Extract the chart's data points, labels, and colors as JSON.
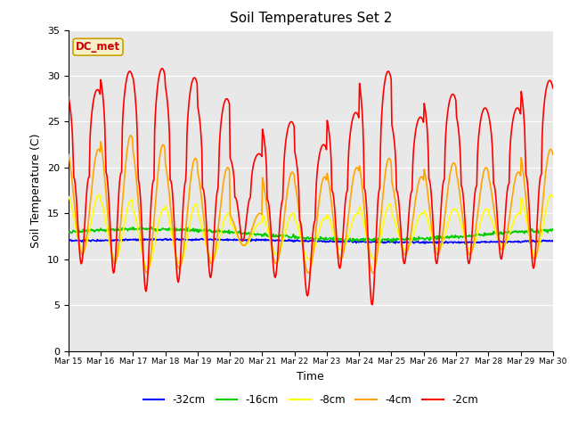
{
  "title": "Soil Temperatures Set 2",
  "xlabel": "Time",
  "ylabel": "Soil Temperature (C)",
  "ylim": [
    0,
    35
  ],
  "background_color": "#e8e8e8",
  "annotation_text": "DC_met",
  "annotation_color": "#cc0000",
  "annotation_bg": "#f5f0c8",
  "annotation_border": "#c8a000",
  "x_tick_labels": [
    "Mar 15",
    "Mar 16",
    "Mar 17",
    "Mar 18",
    "Mar 19",
    "Mar 20",
    "Mar 21",
    "Mar 22",
    "Mar 23",
    "Mar 24",
    "Mar 25",
    "Mar 26",
    "Mar 27",
    "Mar 28",
    "Mar 29",
    "Mar 30"
  ],
  "series_colors": [
    "blue",
    "#00cc00",
    "yellow",
    "orange",
    "red"
  ],
  "series_labels": [
    "-32cm",
    "-16cm",
    "-8cm",
    "-4cm",
    "-2cm"
  ],
  "peaks_s2": [
    28.5,
    30.5,
    30.8,
    29.8,
    27.5,
    21.5,
    25.0,
    22.5,
    26.0,
    30.5,
    25.5,
    28.0,
    26.5,
    26.5,
    29.5
  ],
  "troughs_s2": [
    9.5,
    8.5,
    6.5,
    7.5,
    8.0,
    12.0,
    8.0,
    6.0,
    9.0,
    5.0,
    9.5,
    9.5,
    9.5,
    10.0,
    9.0
  ],
  "peaks_s4": [
    22.0,
    23.5,
    22.5,
    21.0,
    20.0,
    15.0,
    19.5,
    19.0,
    20.0,
    21.0,
    19.0,
    20.5,
    20.0,
    19.5,
    22.0
  ],
  "troughs_s4": [
    10.5,
    9.5,
    8.5,
    9.0,
    9.5,
    11.5,
    9.5,
    8.5,
    10.0,
    8.5,
    10.5,
    10.5,
    10.5,
    11.0,
    10.0
  ],
  "peaks_s8": [
    17.0,
    16.5,
    15.5,
    16.0,
    15.0,
    14.0,
    15.0,
    14.5,
    15.0,
    16.0,
    15.0,
    15.5,
    15.5,
    15.0,
    17.0
  ],
  "troughs_s8": [
    11.0,
    10.0,
    9.0,
    9.5,
    10.0,
    11.5,
    10.5,
    10.0,
    11.0,
    10.0,
    11.0,
    11.0,
    11.0,
    11.5,
    10.5
  ]
}
